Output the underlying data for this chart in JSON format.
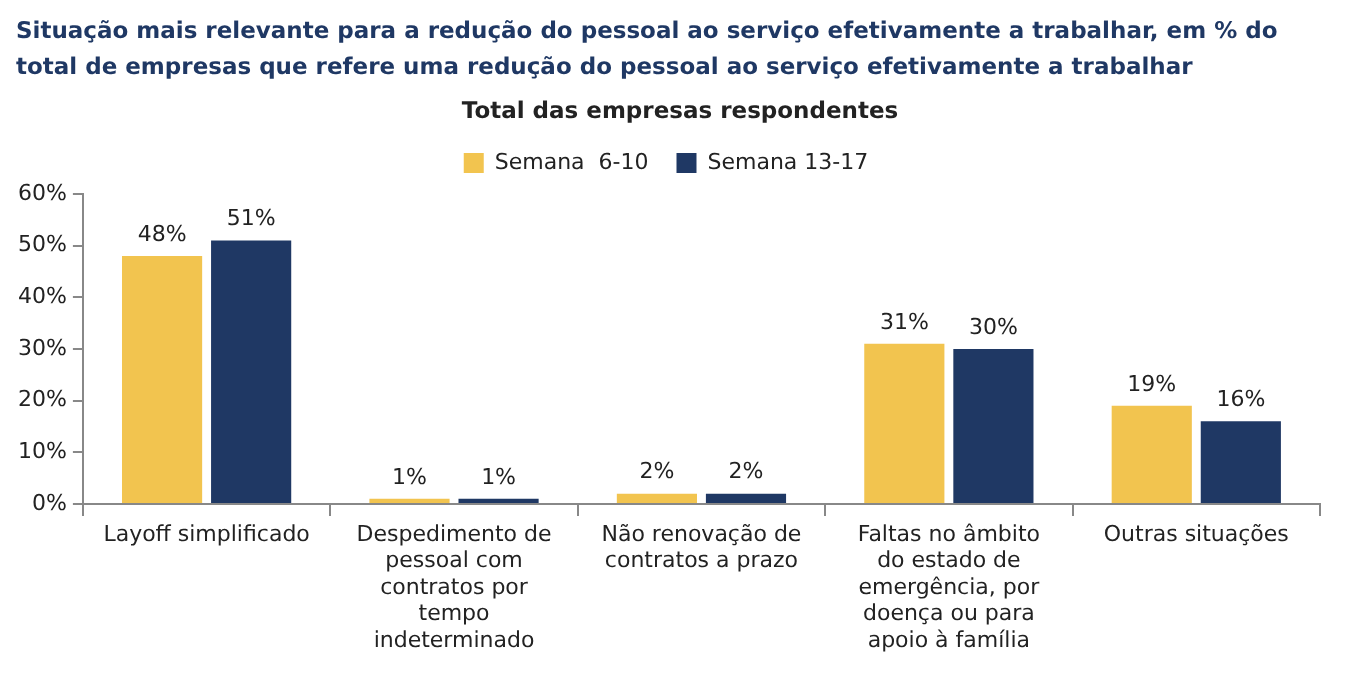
{
  "chart_data": {
    "type": "bar",
    "title": "Situação mais relevante para a redução do pessoal ao serviço efetivamente a trabalhar, em % do total de empresas que refere uma redução do pessoal ao serviço efetivamente a trabalhar",
    "subtitle": "Total das empresas respondentes",
    "categories": [
      "Layoff simplificado",
      "Despedimento de pessoal com contratos por tempo indeterminado",
      "Não renovação de contratos a prazo",
      "Faltas no âmbito do estado de emergência, por doença ou para apoio à família",
      "Outras situações"
    ],
    "series": [
      {
        "name": "Semana  6-10",
        "color": "#f2c44f",
        "values": [
          48,
          1,
          2,
          31,
          19
        ],
        "value_labels": [
          "48%",
          "1%",
          "2%",
          "31%",
          "19%"
        ]
      },
      {
        "name": "Semana 13-17",
        "color": "#1f3864",
        "values": [
          51,
          1,
          2,
          30,
          16
        ],
        "value_labels": [
          "51%",
          "1%",
          "2%",
          "30%",
          "16%"
        ]
      }
    ],
    "ylim": [
      0,
      60
    ],
    "yticks": [
      {
        "value": 0,
        "label": "0%"
      },
      {
        "value": 10,
        "label": "10%"
      },
      {
        "value": 20,
        "label": "20%"
      },
      {
        "value": 30,
        "label": "30%"
      },
      {
        "value": 40,
        "label": "40%"
      },
      {
        "value": 50,
        "label": "50%"
      },
      {
        "value": 60,
        "label": "60%"
      }
    ],
    "grid": false,
    "legend": "top"
  }
}
